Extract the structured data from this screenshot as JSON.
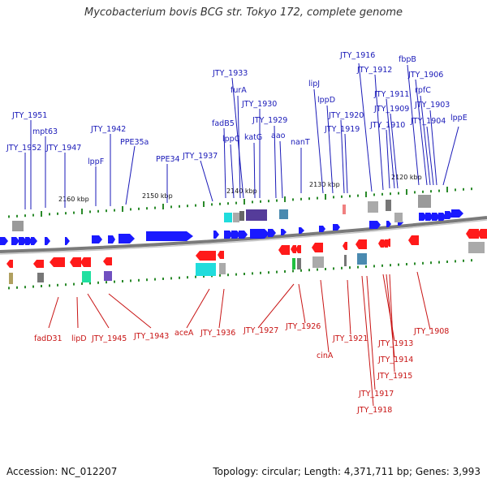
{
  "title": "Mycobacterium bovis BCG str. Tokyo 172, complete genome",
  "footer": {
    "accession": "Accession: NC_012207",
    "summary": "Topology: circular; Length: 4,371,711 bp; Genes: 3,993"
  },
  "colors": {
    "forward_gene": "#1a1aff",
    "reverse_gene": "#ff1a1a",
    "top_label": "#1a1ab8",
    "bottom_label": "#c81414",
    "backbone": "#888888",
    "tick": "#2a8a2a"
  },
  "scale_labels": [
    "2160 kbp",
    "2150 kbp",
    "2140 kbp",
    "2130 kbp",
    "2120 kbp"
  ],
  "top_labels": [
    "JTY_1951",
    "JTY_1952",
    "mpt63",
    "JTY_1947",
    "JTY_1942",
    "lppF",
    "PPE35a",
    "PPE34",
    "JTY_1937",
    "JTY_1933",
    "fadB5",
    "furA",
    "lppC",
    "JTY_1930",
    "katG",
    "JTY_1929",
    "aao",
    "nanT",
    "lipJ",
    "lppD",
    "JTY_1920",
    "JTY_1919",
    "JTY_1916",
    "JTY_1912",
    "fbpB",
    "JTY_1911",
    "JTY_1906",
    "rpfC",
    "JTY_1909",
    "JTY_1910",
    "JTY_1903",
    "JTY_1904",
    "lppE"
  ],
  "bottom_labels": [
    "fadD31",
    "lipD",
    "JTY_1945",
    "JTY_1943",
    "aceA",
    "JTY_1936",
    "JTY_1927",
    "JTY_1926",
    "cinA",
    "JTY_1921",
    "JTY_1913",
    "JTY_1914",
    "JTY_1915",
    "JTY_1917",
    "JTY_1918",
    "JTY_1908"
  ]
}
